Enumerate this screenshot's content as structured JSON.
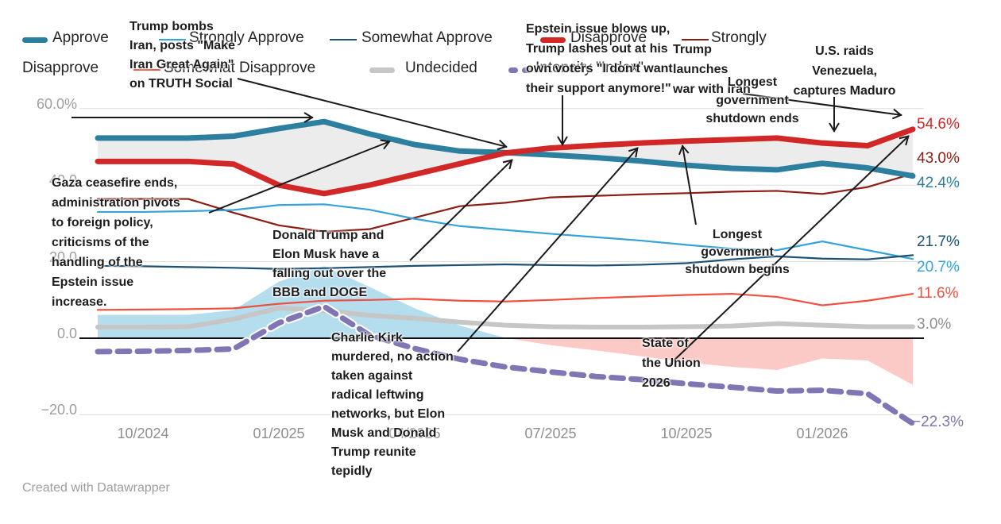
{
  "footer": {
    "credit": "Created with Datawrapper"
  },
  "legend": {
    "items": [
      {
        "id": "approve",
        "label": "Approve",
        "color": "#2c7f9e",
        "style": "thick"
      },
      {
        "id": "strongly_approve",
        "label": "Strongly Approve",
        "color": "#35a3d8",
        "style": "thin"
      },
      {
        "id": "somewhat_approve",
        "label": "Somewhat Approve",
        "color": "#1d5075",
        "style": "thin"
      },
      {
        "id": "disapprove",
        "label": "Disapprove",
        "color": "#d12727",
        "style": "thick"
      },
      {
        "id": "strongly_disapprove",
        "label": "Strongly Disapprove",
        "color": "#8c1d14",
        "style": "thin",
        "wrap": [
          "Strongly",
          "Disapprove"
        ]
      },
      {
        "id": "somewhat_disapprove",
        "label": "Somewhat Disapprove",
        "color": "#f0503f",
        "style": "thin"
      },
      {
        "id": "undecided",
        "label": "Undecided",
        "color": "#c6c6c6",
        "style": "thick"
      },
      {
        "id": "intensity",
        "label": "Intensity \"Index\"",
        "color": "#8076b3",
        "style": "dashed"
      }
    ]
  },
  "chart_data": {
    "type": "line",
    "x": [
      "09/2024",
      "10/2024",
      "11/2024",
      "12/2024",
      "01/2025",
      "02/2025",
      "03/2025",
      "04/2025",
      "05/2025",
      "06/2025",
      "07/2025",
      "08/2025",
      "09/2025",
      "10/2025",
      "11/2025",
      "12/2025",
      "01/2026",
      "02/2026",
      "03/2026"
    ],
    "series": [
      {
        "name": "Approve",
        "color": "#2c7f9e",
        "width": 7,
        "style": "solid",
        "values": [
          52.3,
          52.3,
          52.3,
          52.8,
          54.8,
          56.6,
          53.4,
          50.6,
          48.9,
          48.5,
          47.9,
          47.2,
          46.3,
          45.2,
          44.4,
          44.0,
          45.7,
          44.5,
          42.4
        ]
      },
      {
        "name": "Disapprove",
        "color": "#d12727",
        "width": 7,
        "style": "solid",
        "values": [
          46.2,
          46.2,
          46.2,
          45.5,
          40.0,
          37.8,
          40.0,
          42.8,
          45.6,
          48.4,
          49.7,
          50.4,
          51.0,
          51.5,
          51.9,
          52.3,
          51.0,
          50.3,
          54.6
        ]
      },
      {
        "name": "Strongly Approve",
        "color": "#35a3d8",
        "width": 2.2,
        "style": "solid",
        "values": [
          33.0,
          33.0,
          33.2,
          33.5,
          34.8,
          35.0,
          33.6,
          31.2,
          29.3,
          28.3,
          27.3,
          26.4,
          25.5,
          24.4,
          23.4,
          23.0,
          25.3,
          23.0,
          20.7
        ]
      },
      {
        "name": "Somewhat Approve",
        "color": "#1d5075",
        "width": 2.2,
        "style": "solid",
        "values": [
          18.9,
          18.8,
          18.6,
          18.4,
          18.1,
          18.3,
          18.6,
          18.9,
          19.1,
          19.3,
          19.1,
          19.0,
          19.2,
          19.6,
          20.6,
          21.4,
          20.8,
          20.6,
          21.7
        ]
      },
      {
        "name": "Strongly Disapprove",
        "color": "#8c1d14",
        "width": 2.2,
        "style": "solid",
        "values": [
          36.4,
          36.4,
          36.4,
          32.8,
          29.5,
          27.8,
          28.5,
          31.5,
          34.5,
          35.4,
          36.8,
          37.2,
          37.6,
          37.9,
          38.3,
          38.5,
          37.7,
          39.5,
          43.0
        ]
      },
      {
        "name": "Somewhat Disapprove",
        "color": "#f0503f",
        "width": 2.2,
        "style": "solid",
        "values": [
          7.4,
          7.5,
          7.6,
          7.8,
          9.0,
          9.8,
          10.0,
          10.3,
          9.8,
          9.6,
          10.0,
          10.5,
          10.9,
          11.3,
          11.6,
          10.8,
          8.6,
          9.8,
          11.6
        ]
      },
      {
        "name": "Undecided",
        "color": "#c6c6c6",
        "width": 6,
        "style": "solid",
        "values": [
          2.9,
          2.9,
          3.0,
          5.0,
          7.9,
          7.2,
          6.0,
          5.2,
          4.2,
          3.4,
          3.0,
          2.9,
          2.9,
          3.0,
          3.2,
          3.8,
          3.4,
          3.0,
          3.0
        ]
      },
      {
        "name": "Intensity \"Index\"",
        "color": "#8076b3",
        "width": 7,
        "style": "dashed",
        "values": [
          -3.5,
          -3.4,
          -3.2,
          -2.8,
          4.0,
          8.3,
          0.8,
          -2.7,
          -5.5,
          -7.5,
          -8.8,
          -10.0,
          -10.8,
          -11.9,
          -12.8,
          -13.8,
          -13.6,
          -14.5,
          -22.3
        ]
      }
    ],
    "fills": {
      "approval_band_color": "#ececec",
      "net_positive_color": "#b4ddee",
      "net_negative_color": "#fccac6",
      "net_between": [
        "Approve",
        "Disapprove"
      ]
    },
    "y_axis": {
      "ticks": [
        {
          "label": "60.0%",
          "value": 60
        },
        {
          "label": "40.0",
          "value": 40
        },
        {
          "label": "20.0",
          "value": 20
        },
        {
          "label": "0.0",
          "value": 0
        },
        {
          "label": "−20.0",
          "value": -20
        }
      ],
      "ylim": [
        -27,
        62
      ],
      "grid": true
    },
    "x_axis": {
      "ticks": [
        {
          "label": "10/2024",
          "index": 1
        },
        {
          "label": "01/2025",
          "index": 4
        },
        {
          "label": "04/2025",
          "index": 7
        },
        {
          "label": "07/2025",
          "index": 10
        },
        {
          "label": "10/2025",
          "index": 13
        },
        {
          "label": "01/2026",
          "index": 16
        }
      ]
    },
    "end_labels": [
      {
        "text": "54.6%",
        "series": "Disapprove",
        "color": "#d12727"
      },
      {
        "text": "43.0%",
        "series": "Strongly Disapprove",
        "color": "#8c1d14"
      },
      {
        "text": "42.4%",
        "series": "Approve",
        "color": "#2c7f9e"
      },
      {
        "text": "21.7%",
        "series": "Somewhat Approve",
        "color": "#1d5075"
      },
      {
        "text": "20.7%",
        "series": "Strongly Approve",
        "color": "#35a3d8"
      },
      {
        "text": "11.6%",
        "series": "Somewhat Disapprove",
        "color": "#f0503f"
      },
      {
        "text": "3.0%",
        "series": "Undecided",
        "color": "#8f8f8f"
      },
      {
        "text": "−22.3%",
        "series": "Intensity \"Index\"",
        "color": "#8076b3"
      }
    ],
    "annotations": [
      {
        "id": "trump-bombs",
        "text": "Trump bombs\nIran, posts \"Make\nIran Great Again\"\non TRUTH Social"
      },
      {
        "id": "epstein",
        "text": "Epstein issue blows up,\nTrump lashes out at his\nown voters \"I don't want\ntheir support anymore!\""
      },
      {
        "id": "war-iran",
        "text": "Trump\nlaunches\nwar with Iran"
      },
      {
        "id": "maduro",
        "text": "U.S. raids\nVenezuela,\ncaptures Maduro"
      },
      {
        "id": "shutdown-ends",
        "text": "Longest\ngovernment\nshutdown ends"
      },
      {
        "id": "gaza",
        "text": "Gaza ceasefire ends,\nadministration pivots\nto foreign policy,\ncriticisms of the\nhandling of the\nEpstein issue\nincrease."
      },
      {
        "id": "musk",
        "text": "Donald Trump and\nElon Musk have a\nfalling out over the\nBBB and DOGE"
      },
      {
        "id": "shutdown-begins",
        "text": "Longest\ngovernment\nshutdown begins"
      },
      {
        "id": "kirk",
        "text": "Charlie Kirk\nmurdered, no action\ntaken against\nradical leftwing\nnetworks, but Elon\nMusk and Donald\nTrump reunite\ntepidly"
      },
      {
        "id": "sotu",
        "text": "State of\nthe Union\n2026"
      }
    ],
    "legend_position": "top"
  }
}
